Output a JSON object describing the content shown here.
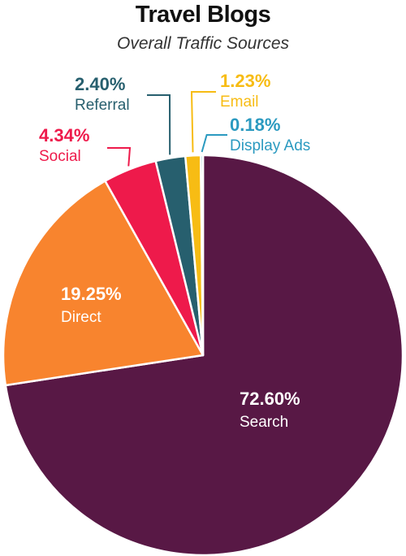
{
  "chart_data": {
    "type": "pie",
    "title": "Travel Blogs",
    "subtitle": "Overall Traffic Sources",
    "slices": [
      {
        "label": "Search",
        "value": 72.6,
        "pct_label": "72.60%",
        "color": "#581845"
      },
      {
        "label": "Direct",
        "value": 19.25,
        "pct_label": "19.25%",
        "color": "#F8842E"
      },
      {
        "label": "Social",
        "value": 4.34,
        "pct_label": "4.34%",
        "color": "#EE1A4B"
      },
      {
        "label": "Referral",
        "value": 2.4,
        "pct_label": "2.40%",
        "color": "#275F6E"
      },
      {
        "label": "Email",
        "value": 1.23,
        "pct_label": "1.23%",
        "color": "#F7BC14"
      },
      {
        "label": "Display Ads",
        "value": 0.18,
        "pct_label": "0.18%",
        "color": "#2B9AC0"
      }
    ]
  }
}
